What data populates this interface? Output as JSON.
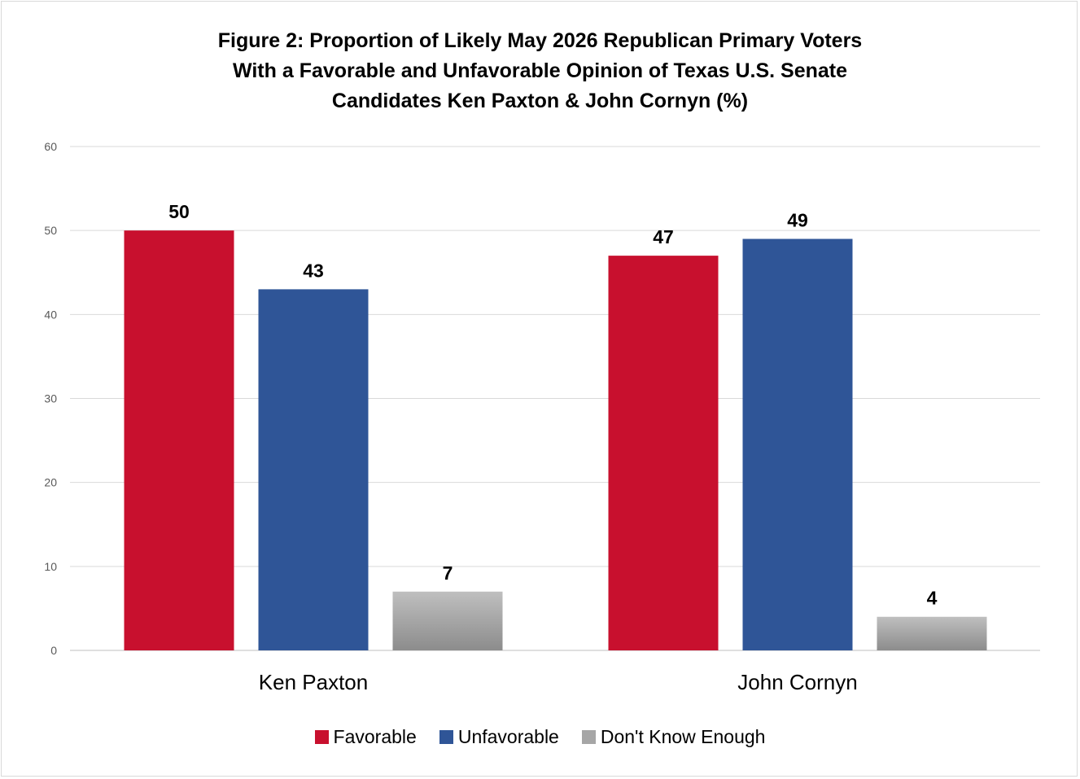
{
  "chart_data": {
    "type": "bar",
    "title_lines": [
      "Figure 2: Proportion of Likely May 2026 Republican Primary Voters",
      "With a Favorable and Unfavorable Opinion of Texas U.S. Senate",
      "Candidates Ken Paxton & John Cornyn (%)"
    ],
    "categories": [
      "Ken Paxton",
      "John Cornyn"
    ],
    "series": [
      {
        "name": "Favorable",
        "values": [
          50,
          47
        ],
        "color": "#c8102e"
      },
      {
        "name": "Unfavorable",
        "values": [
          43,
          49
        ],
        "color": "#2f5597"
      },
      {
        "name": "Don't Know Enough",
        "values": [
          7,
          4
        ],
        "color": "#a6a6a6"
      }
    ],
    "ylim": [
      0,
      60
    ],
    "yticks": [
      0,
      10,
      20,
      30,
      40,
      50,
      60
    ],
    "grid": true,
    "data_labels": true,
    "legend_position": "bottom"
  }
}
